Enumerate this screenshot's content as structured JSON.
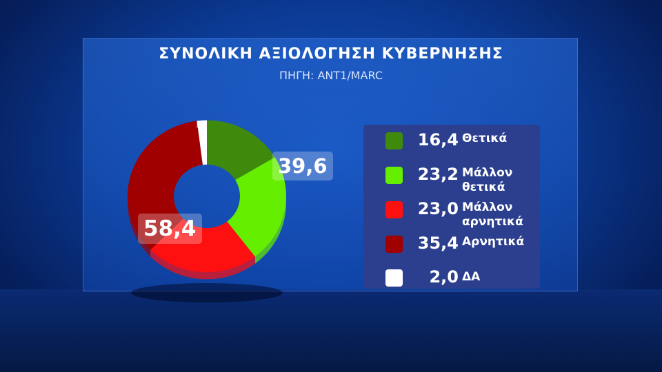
{
  "chart_data": {
    "type": "pie",
    "title": "ΣΥΝΟΛΙΚΗ ΑΞΙΟΛΟΓΗΣΗ ΚΥΒΕΡΝΗΣΗΣ",
    "subtitle": "ΠΗΓΗ: ANT1/MARC",
    "donut": true,
    "legend_position": "right",
    "slices": [
      {
        "value_label": "16,4",
        "value": 16.4,
        "label": "Θετικά",
        "color": "#3f8a0c"
      },
      {
        "value_label": "23,2",
        "value": 23.2,
        "label": "Μάλλον θετικά",
        "color": "#66ee00"
      },
      {
        "value_label": "23,0",
        "value": 23.0,
        "label": "Μάλλον αρνητικά",
        "color": "#ff1010"
      },
      {
        "value_label": "35,4",
        "value": 35.4,
        "label": "Αρνητικά",
        "color": "#a00000"
      },
      {
        "value_label": "2,0",
        "value": 2.0,
        "label": "ΔΑ",
        "color": "#ffffff"
      }
    ],
    "annotations": [
      {
        "text": "39,6",
        "group": "positive"
      },
      {
        "text": "58,4",
        "group": "negative"
      }
    ]
  }
}
